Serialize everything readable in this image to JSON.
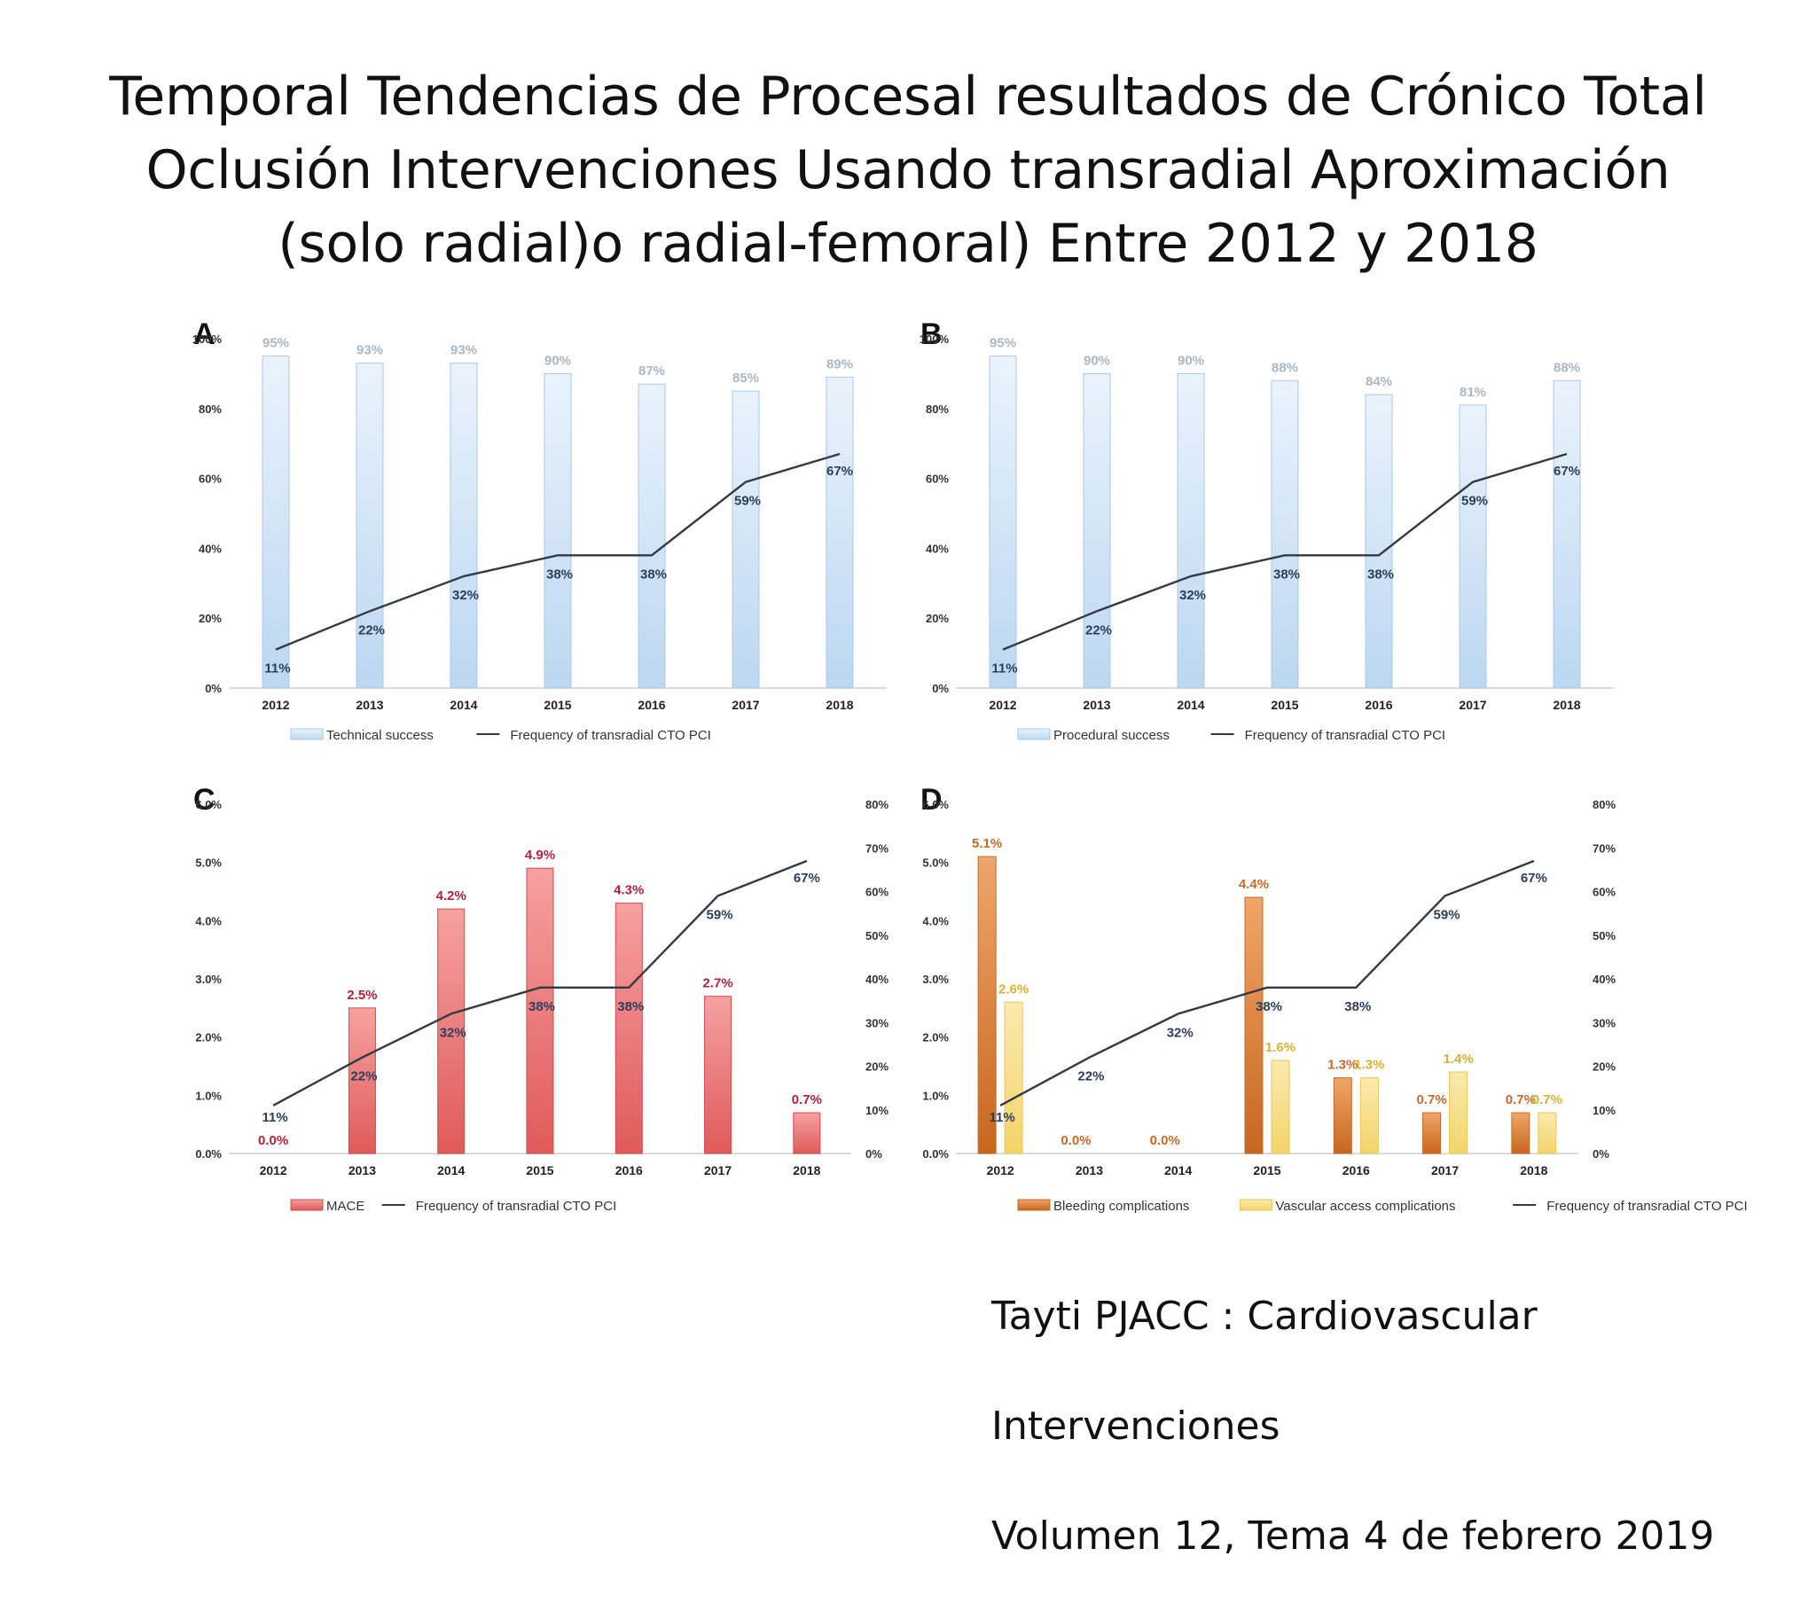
{
  "title": "Temporal Tendencias de Procesal resultados de Crónico Total Oclusión Intervenciones Usando transradial Aproximación (solo radial)o radial-femoral) Entre 2012 y 2018",
  "citation": {
    "line1": "Tayti PJACC : Cardiovascular",
    "line2": "Intervenciones",
    "line3": "Volumen 12, Tema 4 de febrero 2019"
  },
  "colors": {
    "blue_bar": "#dcebf9",
    "blue_bar_edge": "#a9c9e8",
    "red_bar": "#f28b8b",
    "orange_bar": "#e08a4a",
    "yellow_bar": "#f7df8f",
    "line": "#333a44"
  },
  "chart_data": [
    {
      "panel": "A",
      "type": "bar",
      "categories": [
        "2012",
        "2013",
        "2014",
        "2015",
        "2016",
        "2017",
        "2018"
      ],
      "yticks": [
        "0%",
        "20%",
        "40%",
        "60%",
        "80%",
        "100%"
      ],
      "ylim": [
        0,
        100
      ],
      "series": [
        {
          "name": "Technical success",
          "type": "bar",
          "values": [
            95,
            93,
            93,
            90,
            87,
            85,
            89
          ],
          "labels": [
            "95%",
            "93%",
            "93%",
            "90%",
            "87%",
            "85%",
            "89%"
          ]
        },
        {
          "name": "Frequency of transradial CTO PCI",
          "type": "line",
          "values": [
            11,
            22,
            32,
            38,
            38,
            59,
            67
          ],
          "labels": [
            "11%",
            "22%",
            "32%",
            "38%",
            "38%",
            "59%",
            "67%"
          ]
        }
      ]
    },
    {
      "panel": "B",
      "type": "bar",
      "categories": [
        "2012",
        "2013",
        "2014",
        "2015",
        "2016",
        "2017",
        "2018"
      ],
      "yticks": [
        "0%",
        "20%",
        "40%",
        "60%",
        "80%",
        "100%"
      ],
      "ylim": [
        0,
        100
      ],
      "series": [
        {
          "name": "Procedural success",
          "type": "bar",
          "values": [
            95,
            90,
            90,
            88,
            84,
            81,
            88
          ],
          "labels": [
            "95%",
            "90%",
            "90%",
            "88%",
            "84%",
            "81%",
            "88%"
          ]
        },
        {
          "name": "Frequency of transradial CTO PCI",
          "type": "line",
          "values": [
            11,
            22,
            32,
            38,
            38,
            59,
            67
          ],
          "labels": [
            "11%",
            "22%",
            "32%",
            "38%",
            "38%",
            "59%",
            "67%"
          ]
        }
      ]
    },
    {
      "panel": "C",
      "type": "bar",
      "categories": [
        "2012",
        "2013",
        "2014",
        "2015",
        "2016",
        "2017",
        "2018"
      ],
      "yticks": [
        "0.0%",
        "1.0%",
        "2.0%",
        "3.0%",
        "4.0%",
        "5.0%",
        "6.0%"
      ],
      "ylim": [
        0,
        6
      ],
      "y2ticks": [
        "0%",
        "10%",
        "20%",
        "30%",
        "40%",
        "50%",
        "60%",
        "70%",
        "80%"
      ],
      "y2lim": [
        0,
        80
      ],
      "series": [
        {
          "name": "MACE",
          "type": "bar",
          "values": [
            0.0,
            2.5,
            4.2,
            4.9,
            4.3,
            2.7,
            0.7
          ],
          "labels": [
            "0.0%",
            "2.5%",
            "4.2%",
            "4.9%",
            "4.3%",
            "2.7%",
            "0.7%"
          ]
        },
        {
          "name": "Frequency of transradial CTO PCI",
          "type": "line",
          "axis": "right",
          "values": [
            11,
            22,
            32,
            38,
            38,
            59,
            67
          ],
          "labels": [
            "11%",
            "22%",
            "32%",
            "38%",
            "38%",
            "59%",
            "67%"
          ]
        }
      ]
    },
    {
      "panel": "D",
      "type": "bar",
      "categories": [
        "2012",
        "2013",
        "2014",
        "2015",
        "2016",
        "2017",
        "2018"
      ],
      "yticks": [
        "0.0%",
        "1.0%",
        "2.0%",
        "3.0%",
        "4.0%",
        "5.0%",
        "6.0%"
      ],
      "ylim": [
        0,
        6
      ],
      "y2ticks": [
        "0%",
        "10%",
        "20%",
        "30%",
        "40%",
        "50%",
        "60%",
        "70%",
        "80%"
      ],
      "y2lim": [
        0,
        80
      ],
      "series": [
        {
          "name": "Bleeding complications",
          "type": "bar",
          "values": [
            5.1,
            0.0,
            0.0,
            4.4,
            1.3,
            0.7,
            0.7
          ],
          "labels": [
            "5.1%",
            "0.0%",
            "0.0%",
            "4.4%",
            "1.3%",
            "0.7%",
            "0.7%"
          ]
        },
        {
          "name": "Vascular access complications",
          "type": "bar",
          "values": [
            2.6,
            0.0,
            0.0,
            1.6,
            1.3,
            1.4,
            0.7
          ],
          "labels": [
            "2.6%",
            "",
            "",
            "1.6%",
            "1.3%",
            "1.4%",
            "0.7%"
          ]
        },
        {
          "name": "Frequency of transradial CTO PCI",
          "type": "line",
          "axis": "right",
          "values": [
            11,
            22,
            32,
            38,
            38,
            59,
            67
          ],
          "labels": [
            "11%",
            "22%",
            "32%",
            "38%",
            "38%",
            "59%",
            "67%"
          ]
        }
      ]
    }
  ]
}
